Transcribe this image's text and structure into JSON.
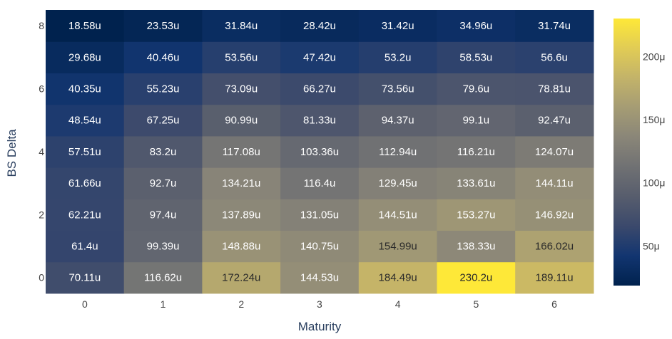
{
  "chart_data": {
    "type": "heatmap",
    "title": "",
    "xlabel": "Maturity",
    "ylabel": "BS Delta",
    "x": [
      0,
      1,
      2,
      3,
      4,
      5,
      6
    ],
    "y": [
      0,
      1,
      2,
      3,
      4,
      5,
      6,
      7,
      8
    ],
    "x_ticks": [
      "0",
      "1",
      "2",
      "3",
      "4",
      "5",
      "6"
    ],
    "y_ticks": [
      "0",
      "2",
      "4",
      "6",
      "8"
    ],
    "z": [
      [
        70.11,
        116.62,
        172.24,
        144.53,
        184.49,
        230.2,
        189.11
      ],
      [
        61.4,
        99.39,
        148.88,
        140.75,
        154.99,
        138.33,
        166.02
      ],
      [
        62.21,
        97.4,
        137.89,
        131.05,
        144.51,
        153.27,
        146.92
      ],
      [
        61.66,
        92.7,
        134.21,
        116.4,
        129.45,
        133.61,
        144.11
      ],
      [
        57.51,
        83.2,
        117.08,
        103.36,
        112.94,
        116.21,
        124.07
      ],
      [
        48.54,
        67.25,
        90.99,
        81.33,
        94.37,
        99.1,
        92.47
      ],
      [
        40.35,
        55.23,
        73.09,
        66.27,
        73.56,
        79.6,
        78.81
      ],
      [
        29.68,
        40.46,
        53.56,
        47.42,
        53.2,
        58.53,
        56.6
      ],
      [
        18.58,
        23.53,
        31.84,
        28.42,
        31.42,
        34.96,
        31.74
      ]
    ],
    "text": [
      [
        "70.11u",
        "116.62u",
        "172.24u",
        "144.53u",
        "184.49u",
        "230.2u",
        "189.11u"
      ],
      [
        "61.4u",
        "99.39u",
        "148.88u",
        "140.75u",
        "154.99u",
        "138.33u",
        "166.02u"
      ],
      [
        "62.21u",
        "97.4u",
        "137.89u",
        "131.05u",
        "144.51u",
        "153.27u",
        "146.92u"
      ],
      [
        "61.66u",
        "92.7u",
        "134.21u",
        "116.4u",
        "129.45u",
        "133.61u",
        "144.11u"
      ],
      [
        "57.51u",
        "83.2u",
        "117.08u",
        "103.36u",
        "112.94u",
        "116.21u",
        "124.07u"
      ],
      [
        "48.54u",
        "67.25u",
        "90.99u",
        "81.33u",
        "94.37u",
        "99.1u",
        "92.47u"
      ],
      [
        "40.35u",
        "55.23u",
        "73.09u",
        "66.27u",
        "73.56u",
        "79.6u",
        "78.81u"
      ],
      [
        "29.68u",
        "40.46u",
        "53.56u",
        "47.42u",
        "53.2u",
        "58.53u",
        "56.6u"
      ],
      [
        "18.58u",
        "23.53u",
        "31.84u",
        "28.42u",
        "31.42u",
        "34.96u",
        "31.74u"
      ]
    ],
    "zmin": 18.58,
    "zmax": 230.2,
    "colorscale": "cividis",
    "colorscale_stops": [
      "#00224e",
      "#123570",
      "#3b496c",
      "#575d6d",
      "#707173",
      "#8a8678",
      "#a59c74",
      "#c3b369",
      "#e1cc55",
      "#fee838"
    ],
    "colorbar": {
      "tickvals": [
        50,
        100,
        150,
        200
      ],
      "ticktext": [
        "50μ",
        "100μ",
        "150μ",
        "200μ"
      ]
    }
  }
}
